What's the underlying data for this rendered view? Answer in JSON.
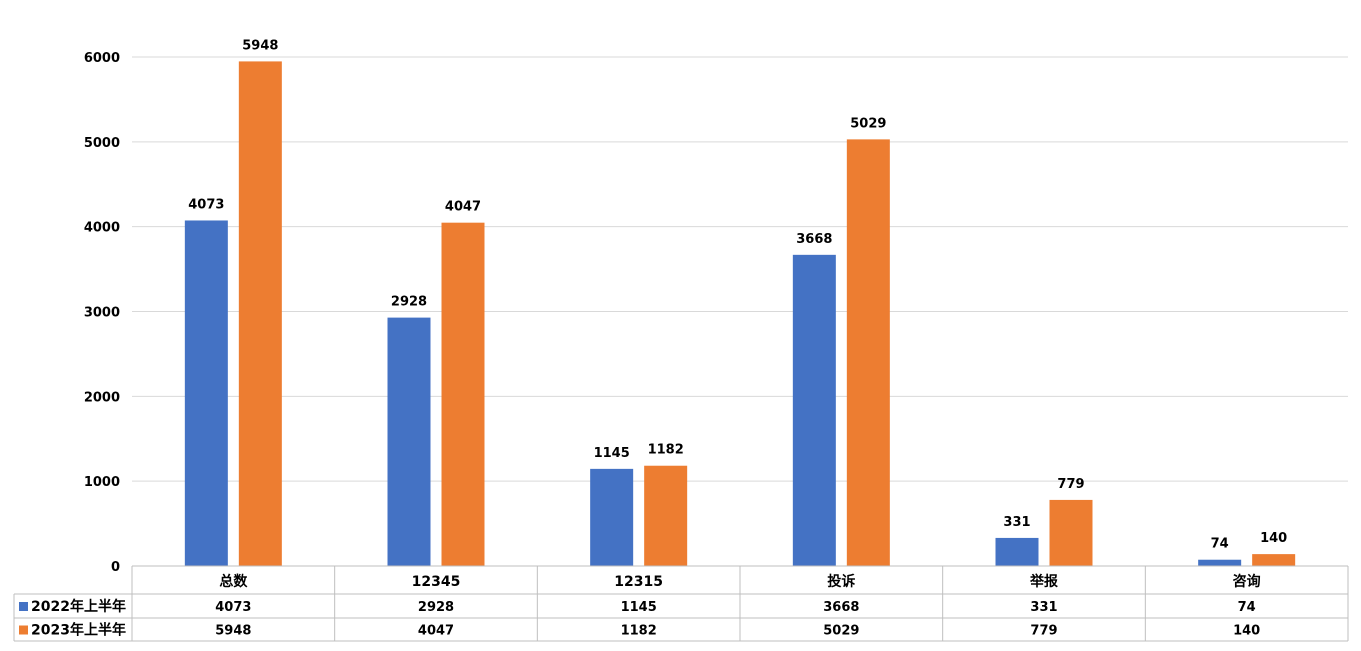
{
  "colors": {
    "series_2022": "#4472c4",
    "series_2023": "#ed7d31",
    "grid": "#d9d9d9",
    "table_border": "#bfbfbf"
  },
  "chart_data": {
    "type": "bar",
    "categories": [
      "总数",
      "12345",
      "12315",
      "投诉",
      "举报",
      "咨询"
    ],
    "series": [
      {
        "name": "2022年上半年",
        "values": [
          4073,
          2928,
          1145,
          3668,
          331,
          74
        ]
      },
      {
        "name": "2023年上半年",
        "values": [
          5948,
          4047,
          1182,
          5029,
          779,
          140
        ]
      }
    ],
    "yticks": [
      0,
      1000,
      2000,
      3000,
      4000,
      5000,
      6000
    ],
    "ylim": [
      0,
      6000
    ],
    "grid": true,
    "data_labels": true,
    "legend": "data-table"
  }
}
